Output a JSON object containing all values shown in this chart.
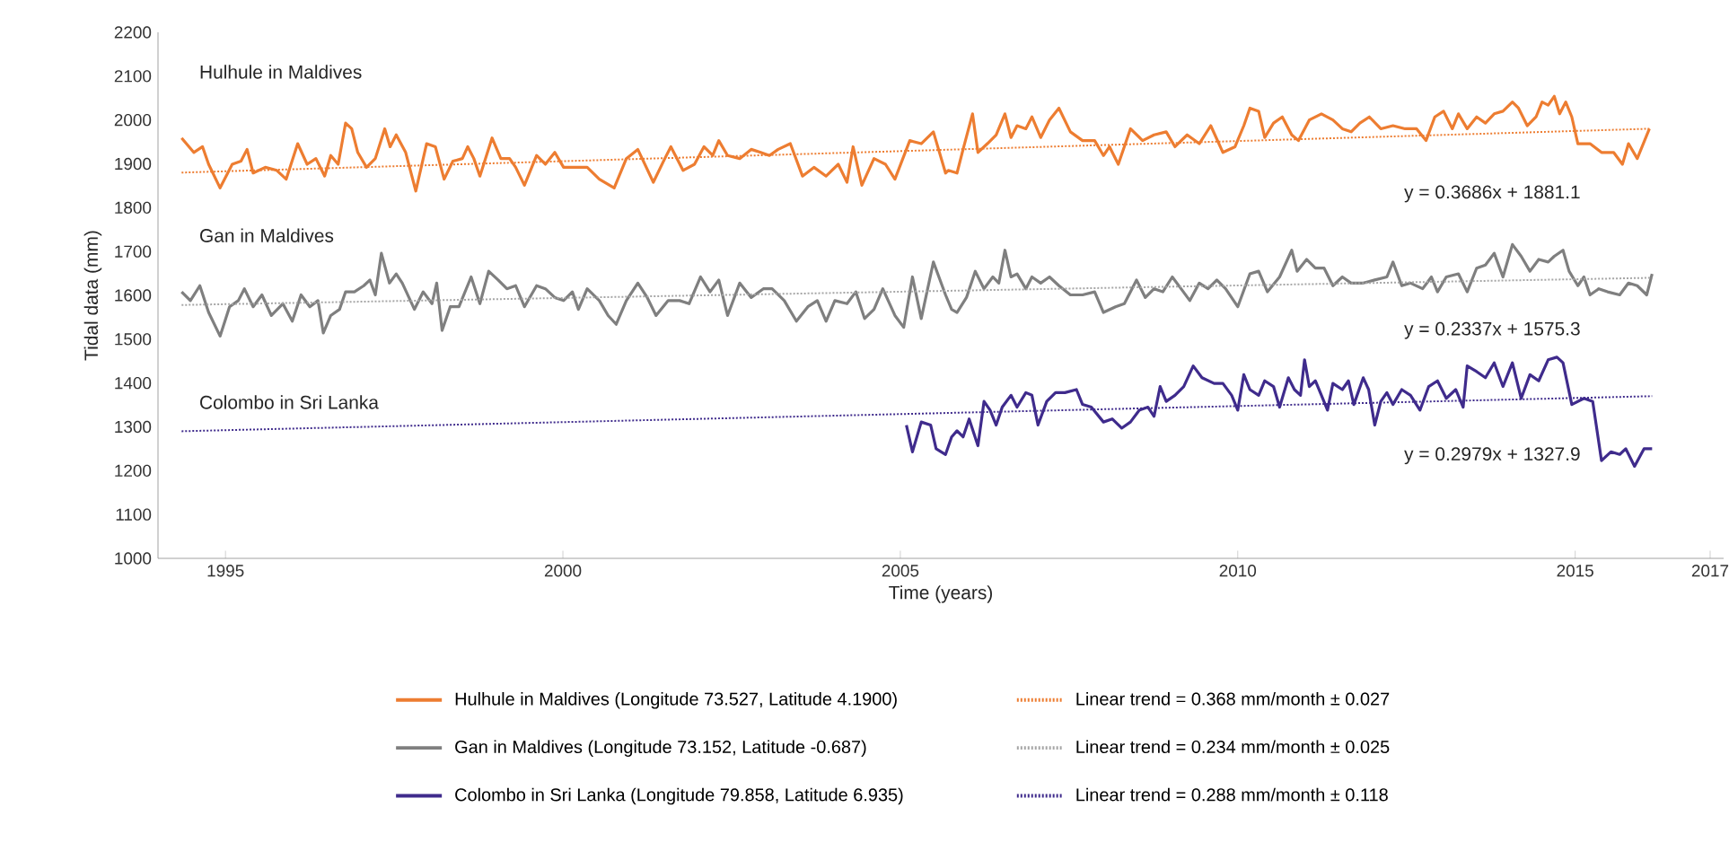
{
  "chart_data": {
    "type": "line",
    "xlabel": "Time (years)",
    "ylabel": "Tidal data (mm)",
    "xlim": [
      1994,
      2017.2
    ],
    "xticks": [
      1995,
      2000,
      2005,
      2010,
      2015,
      2017
    ],
    "ylim": [
      1000,
      2200
    ],
    "yticks": [
      1000,
      1100,
      1200,
      1300,
      1400,
      1500,
      1600,
      1700,
      1800,
      1900,
      2000,
      2100,
      2200
    ],
    "grid": false,
    "legend": "bottom",
    "marker": "none",
    "line_style": "solid",
    "annotations": [
      "Hulhule in Maldives",
      "Gan in Maldives",
      "Colombo in Sri Lanka",
      "y = 0.3686x + 1881.1",
      "y = 0.2337x + 1575.3",
      "y = 0.2979x + 1327.9"
    ],
    "series": [
      {
        "name": "Hulhule in Maldives (Longitude 73.527, Latitude 4.1900)",
        "color": "#ed7d31",
        "x": [
          1994.35,
          1994.53,
          1994.66,
          1994.75,
          1994.92,
          1995.1,
          1995.23,
          1995.32,
          1995.41,
          1995.59,
          1995.76,
          1995.9,
          1996.07,
          1996.21,
          1996.34,
          1996.47,
          1996.56,
          1996.67,
          1996.78,
          1996.87,
          1996.96,
          1997.09,
          1997.22,
          1997.36,
          1997.44,
          1997.53,
          1997.67,
          1997.82,
          1997.98,
          1998.11,
          1998.24,
          1998.37,
          1998.51,
          1998.59,
          1998.68,
          1998.77,
          1998.95,
          1999.08,
          1999.21,
          1999.3,
          1999.43,
          1999.61,
          1999.74,
          1999.88,
          2000.01,
          2000.19,
          2000.36,
          2000.54,
          2000.76,
          2000.94,
          2001.11,
          2001.34,
          2001.51,
          2001.6,
          2001.78,
          2001.95,
          2002.09,
          2002.22,
          2002.31,
          2002.44,
          2002.62,
          2002.79,
          2002.93,
          2003.06,
          2003.19,
          2003.37,
          2003.55,
          2003.72,
          2003.9,
          2004.08,
          2004.21,
          2004.3,
          2004.43,
          2004.61,
          2004.78,
          2004.92,
          2005.14,
          2005.31,
          2005.49,
          2005.67,
          2005.71,
          2005.84,
          2005.93,
          2006.07,
          2006.15,
          2006.29,
          2006.42,
          2006.55,
          2006.64,
          2006.73,
          2006.86,
          2006.95,
          2007.08,
          2007.21,
          2007.35,
          2007.52,
          2007.7,
          2007.88,
          2008.01,
          2008.1,
          2008.23,
          2008.41,
          2008.59,
          2008.76,
          2008.94,
          2009.07,
          2009.25,
          2009.43,
          2009.6,
          2009.78,
          2009.96,
          2010.09,
          2010.18,
          2010.31,
          2010.4,
          2010.53,
          2010.66,
          2010.8,
          2010.9,
          2011.06,
          2011.24,
          2011.41,
          2011.55,
          2011.68,
          2011.81,
          2011.95,
          2012.12,
          2012.3,
          2012.48,
          2012.65,
          2012.79,
          2012.92,
          2013.05,
          2013.18,
          2013.27,
          2013.4,
          2013.54,
          2013.67,
          2013.8,
          2013.93,
          2014.07,
          2014.16,
          2014.29,
          2014.42,
          2014.51,
          2014.6,
          2014.69,
          2014.77,
          2014.86,
          2014.95,
          2015.04,
          2015.22,
          2015.39,
          2015.57,
          2015.7,
          2015.79,
          2015.92,
          2016.1
        ],
        "values": [
          1959,
          1926,
          1939,
          1899,
          1845,
          1899,
          1906,
          1933,
          1879,
          1892,
          1885,
          1865,
          1946,
          1899,
          1912,
          1872,
          1919,
          1899,
          1993,
          1980,
          1926,
          1892,
          1912,
          1980,
          1939,
          1966,
          1926,
          1838,
          1946,
          1939,
          1865,
          1906,
          1912,
          1939,
          1912,
          1872,
          1959,
          1912,
          1912,
          1892,
          1851,
          1919,
          1899,
          1926,
          1892,
          1892,
          1892,
          1865,
          1845,
          1912,
          1933,
          1858,
          1912,
          1939,
          1885,
          1899,
          1939,
          1919,
          1953,
          1919,
          1912,
          1933,
          1926,
          1919,
          1933,
          1946,
          1872,
          1892,
          1872,
          1899,
          1858,
          1939,
          1851,
          1912,
          1899,
          1865,
          1953,
          1946,
          1973,
          1879,
          1885,
          1879,
          1933,
          2014,
          1926,
          1946,
          1966,
          2014,
          1960,
          1987,
          1980,
          2007,
          1960,
          2000,
          2027,
          1973,
          1953,
          1953,
          1919,
          1939,
          1899,
          1980,
          1953,
          1966,
          1973,
          1939,
          1966,
          1946,
          1987,
          1926,
          1939,
          1987,
          2027,
          2020,
          1960,
          1993,
          2007,
          1966,
          1953,
          2000,
          2014,
          2000,
          1980,
          1973,
          1993,
          2007,
          1980,
          1987,
          1980,
          1980,
          1953,
          2007,
          2020,
          1980,
          2014,
          1980,
          2007,
          1993,
          2014,
          2020,
          2041,
          2027,
          1987,
          2007,
          2041,
          2034,
          2054,
          2014,
          2041,
          2007,
          1946,
          1946,
          1926,
          1926,
          1899,
          1946,
          1912,
          1980
        ]
      },
      {
        "name": "Linear trend = 0.368 mm/month ± 0.027",
        "type": "line",
        "line_style": "dotted",
        "color": "#ed7d31",
        "x": [
          1994.35,
          2016.1
        ],
        "values": [
          1880,
          1980
        ]
      },
      {
        "name": "Gan in Maldives (Longitude 73.152, Latitude -0.687)",
        "color": "#7f7f7f",
        "x": [
          1994.35,
          1994.48,
          1994.62,
          1994.75,
          1994.92,
          1995.06,
          1995.19,
          1995.28,
          1995.41,
          1995.54,
          1995.68,
          1995.85,
          1995.99,
          1996.12,
          1996.25,
          1996.37,
          1996.45,
          1996.56,
          1996.69,
          1996.78,
          1996.91,
          1997.05,
          1997.14,
          1997.22,
          1997.31,
          1997.43,
          1997.53,
          1997.62,
          1997.8,
          1997.93,
          1998.06,
          1998.13,
          1998.21,
          1998.33,
          1998.46,
          1998.64,
          1998.77,
          1998.9,
          1999.04,
          1999.17,
          1999.3,
          1999.43,
          1999.61,
          1999.74,
          1999.88,
          2000.01,
          2000.14,
          2000.23,
          2000.36,
          2000.54,
          2000.67,
          2000.79,
          2000.94,
          2001.11,
          2001.25,
          2001.38,
          2001.56,
          2001.73,
          2001.87,
          2002.04,
          2002.18,
          2002.31,
          2002.44,
          2002.62,
          2002.79,
          2002.97,
          2003.1,
          2003.28,
          2003.46,
          2003.63,
          2003.77,
          2003.9,
          2004.03,
          2004.21,
          2004.34,
          2004.47,
          2004.61,
          2004.74,
          2004.92,
          2005.05,
          2005.18,
          2005.31,
          2005.49,
          2005.67,
          2005.76,
          2005.84,
          2005.98,
          2006.11,
          2006.24,
          2006.37,
          2006.46,
          2006.55,
          2006.64,
          2006.73,
          2006.86,
          2006.95,
          2007.08,
          2007.21,
          2007.35,
          2007.52,
          2007.7,
          2007.88,
          2008.01,
          2008.19,
          2008.32,
          2008.5,
          2008.63,
          2008.76,
          2008.89,
          2009.03,
          2009.16,
          2009.29,
          2009.43,
          2009.56,
          2009.69,
          2009.82,
          2010.0,
          2010.18,
          2010.31,
          2010.44,
          2010.62,
          2010.8,
          2010.88,
          2011.02,
          2011.15,
          2011.28,
          2011.41,
          2011.55,
          2011.68,
          2011.86,
          2012.03,
          2012.21,
          2012.3,
          2012.43,
          2012.56,
          2012.74,
          2012.87,
          2012.96,
          2013.09,
          2013.27,
          2013.4,
          2013.54,
          2013.67,
          2013.8,
          2013.93,
          2014.07,
          2014.2,
          2014.33,
          2014.46,
          2014.6,
          2014.69,
          2014.82,
          2014.91,
          2015.04,
          2015.13,
          2015.22,
          2015.35,
          2015.48,
          2015.66,
          2015.79,
          2015.92,
          2016.06,
          2016.14
        ],
        "values": [
          1608,
          1588,
          1622,
          1561,
          1507,
          1574,
          1588,
          1615,
          1574,
          1601,
          1554,
          1581,
          1541,
          1601,
          1574,
          1588,
          1514,
          1554,
          1568,
          1608,
          1608,
          1622,
          1635,
          1601,
          1696,
          1628,
          1649,
          1628,
          1568,
          1608,
          1581,
          1628,
          1520,
          1574,
          1574,
          1642,
          1581,
          1655,
          1635,
          1615,
          1622,
          1574,
          1622,
          1615,
          1595,
          1588,
          1608,
          1568,
          1615,
          1588,
          1554,
          1534,
          1588,
          1628,
          1595,
          1554,
          1588,
          1588,
          1581,
          1642,
          1608,
          1635,
          1554,
          1628,
          1595,
          1615,
          1615,
          1588,
          1541,
          1574,
          1588,
          1541,
          1588,
          1581,
          1608,
          1547,
          1568,
          1615,
          1554,
          1527,
          1642,
          1547,
          1676,
          1601,
          1568,
          1561,
          1595,
          1655,
          1615,
          1642,
          1628,
          1703,
          1642,
          1649,
          1615,
          1642,
          1628,
          1642,
          1622,
          1601,
          1601,
          1608,
          1561,
          1574,
          1581,
          1635,
          1595,
          1615,
          1608,
          1642,
          1615,
          1588,
          1628,
          1615,
          1635,
          1615,
          1574,
          1649,
          1655,
          1608,
          1642,
          1703,
          1655,
          1682,
          1662,
          1662,
          1622,
          1642,
          1628,
          1628,
          1635,
          1642,
          1676,
          1622,
          1628,
          1615,
          1642,
          1608,
          1642,
          1649,
          1608,
          1662,
          1669,
          1696,
          1642,
          1716,
          1689,
          1655,
          1682,
          1676,
          1689,
          1703,
          1655,
          1622,
          1642,
          1601,
          1615,
          1608,
          1601,
          1628,
          1622,
          1601,
          1649
        ]
      },
      {
        "name": "Linear trend = 0.234 mm/month ± 0.025",
        "type": "line",
        "line_style": "dotted",
        "color": "#a6a6a6",
        "x": [
          1994.35,
          2016.14
        ],
        "values": [
          1578,
          1640
        ]
      },
      {
        "name": "Colombo in Sri Lanka (Longitude 79.858, Latitude 6.935)",
        "color": "#3f2b8c",
        "x": [
          2005.09,
          2005.18,
          2005.31,
          2005.45,
          2005.53,
          2005.67,
          2005.76,
          2005.84,
          2005.93,
          2006.02,
          2006.15,
          2006.24,
          2006.33,
          2006.42,
          2006.51,
          2006.64,
          2006.73,
          2006.86,
          2006.95,
          2007.04,
          2007.17,
          2007.3,
          2007.44,
          2007.61,
          2007.7,
          2007.83,
          2008.01,
          2008.14,
          2008.28,
          2008.41,
          2008.54,
          2008.67,
          2008.76,
          2008.85,
          2008.94,
          2009.07,
          2009.2,
          2009.34,
          2009.47,
          2009.65,
          2009.78,
          2009.91,
          2010.0,
          2010.09,
          2010.18,
          2010.31,
          2010.4,
          2010.53,
          2010.62,
          2010.75,
          2010.84,
          2010.93,
          2010.99,
          2011.06,
          2011.15,
          2011.24,
          2011.33,
          2011.41,
          2011.55,
          2011.64,
          2011.72,
          2011.86,
          2011.94,
          2012.03,
          2012.12,
          2012.21,
          2012.3,
          2012.43,
          2012.56,
          2012.7,
          2012.83,
          2012.96,
          2013.09,
          2013.23,
          2013.34,
          2013.4,
          2013.54,
          2013.67,
          2013.8,
          2013.93,
          2014.07,
          2014.2,
          2014.33,
          2014.46,
          2014.6,
          2014.73,
          2014.82,
          2014.95,
          2015.13,
          2015.26,
          2015.39,
          2015.53,
          2015.66,
          2015.75,
          2015.88,
          2016.02,
          2016.14
        ],
        "values": [
          1304,
          1243,
          1311,
          1304,
          1250,
          1237,
          1277,
          1291,
          1277,
          1318,
          1257,
          1358,
          1338,
          1304,
          1345,
          1372,
          1345,
          1378,
          1372,
          1304,
          1358,
          1378,
          1378,
          1385,
          1351,
          1345,
          1311,
          1318,
          1297,
          1311,
          1338,
          1345,
          1324,
          1392,
          1358,
          1372,
          1392,
          1439,
          1412,
          1399,
          1399,
          1372,
          1338,
          1419,
          1385,
          1372,
          1405,
          1392,
          1345,
          1412,
          1385,
          1372,
          1453,
          1392,
          1405,
          1372,
          1338,
          1399,
          1385,
          1405,
          1351,
          1412,
          1385,
          1304,
          1358,
          1378,
          1351,
          1385,
          1372,
          1338,
          1392,
          1405,
          1365,
          1385,
          1345,
          1439,
          1426,
          1412,
          1446,
          1392,
          1446,
          1365,
          1419,
          1405,
          1453,
          1459,
          1446,
          1351,
          1365,
          1358,
          1223,
          1243,
          1237,
          1250,
          1210,
          1250,
          1250
        ]
      },
      {
        "name": "Linear trend = 0.288 mm/month ± 0.118",
        "type": "line",
        "line_style": "dotted",
        "color": "#3f2b8c",
        "x": [
          1994.35,
          2016.14
        ],
        "values": [
          1290,
          1370
        ]
      }
    ]
  }
}
